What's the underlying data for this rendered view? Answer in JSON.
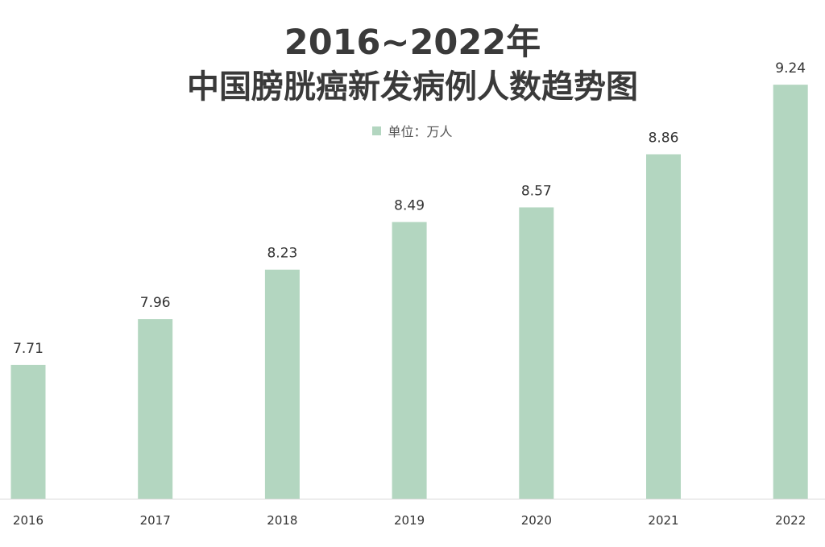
{
  "chart_data": {
    "type": "bar",
    "title_line_1": "2016~2022年",
    "title_line_2": "中国膀胱癌新发病例人数趋势图",
    "legend": "单位：万人",
    "categories": [
      "2016",
      "2017",
      "2018",
      "2019",
      "2020",
      "2021",
      "2022"
    ],
    "values": [
      7.71,
      7.96,
      8.23,
      8.49,
      8.57,
      8.86,
      9.24
    ],
    "value_labels": [
      "7.71",
      "7.96",
      "8.23",
      "8.49",
      "8.57",
      "8.86",
      "9.24"
    ],
    "bar_color": "#b3d6c0",
    "axis_color": "#d9d9d9",
    "grid": false,
    "legend_position": "top"
  }
}
